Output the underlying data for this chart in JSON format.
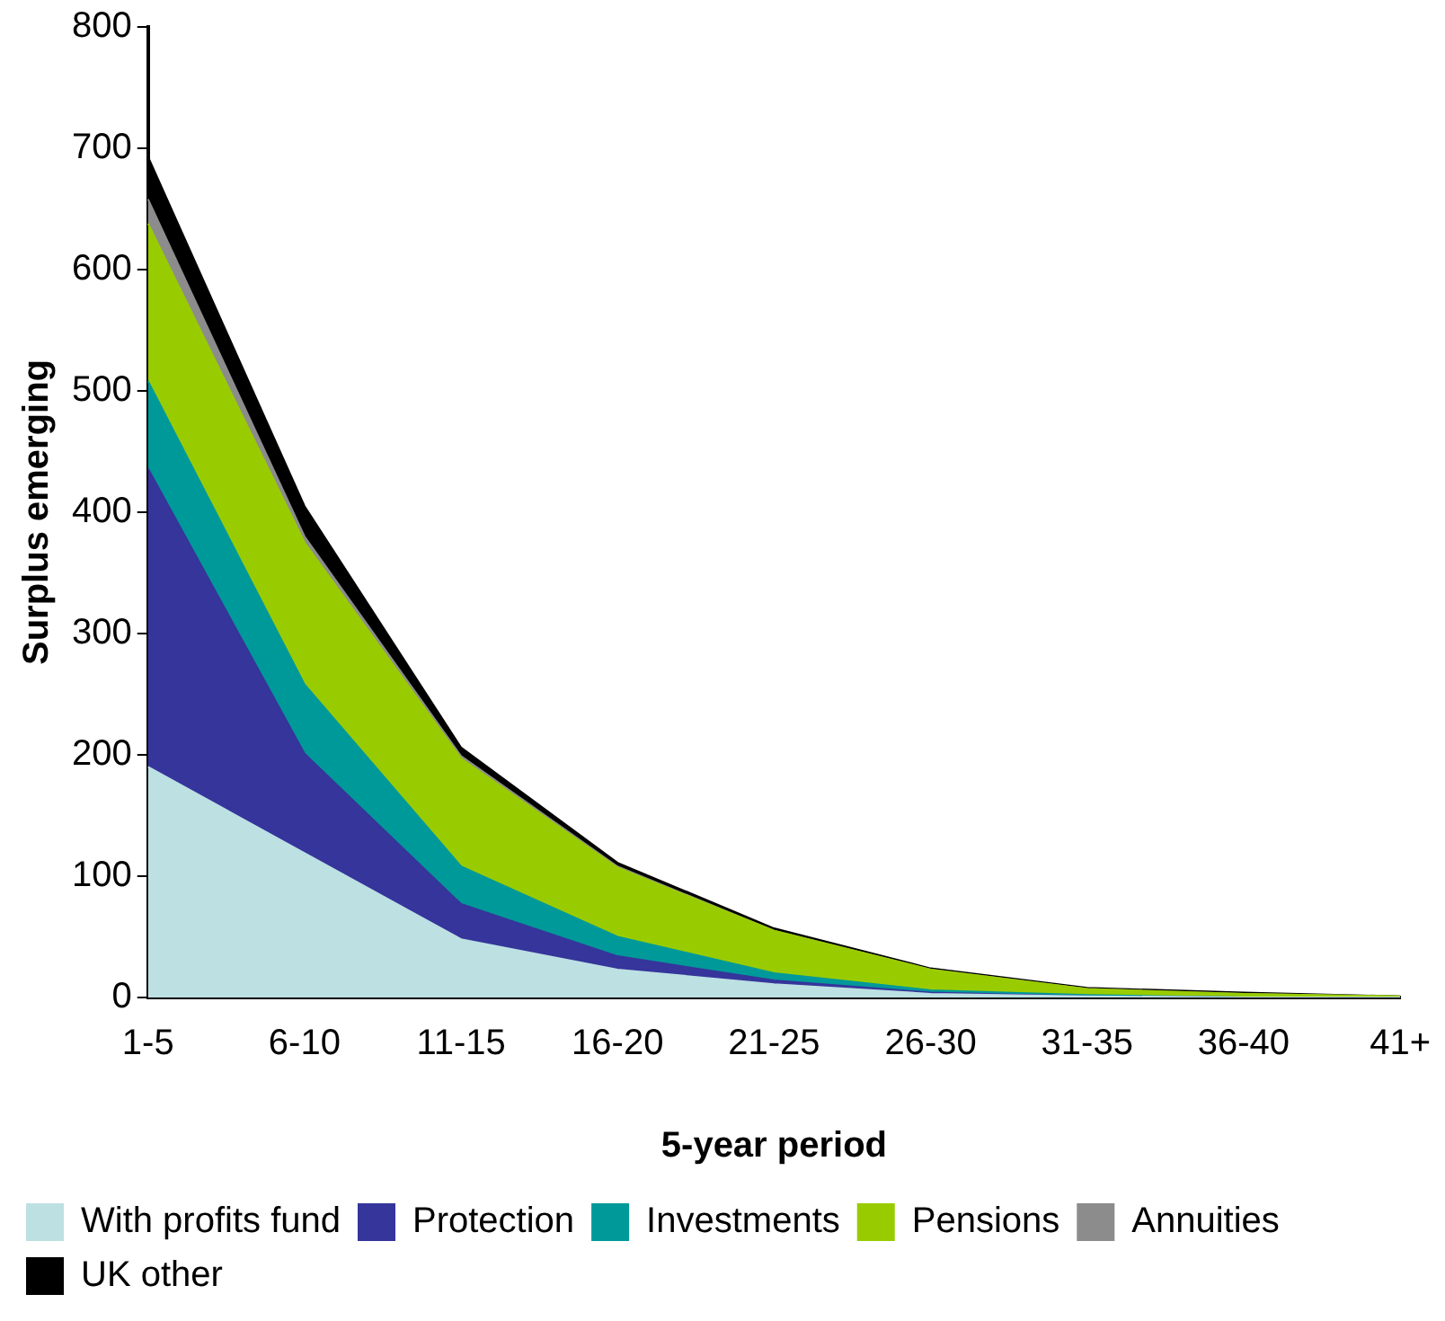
{
  "chart_data": {
    "type": "area",
    "stacked": true,
    "xlabel": "5-year period",
    "ylabel": "Surplus emerging",
    "categories": [
      "1-5",
      "6-10",
      "11-15",
      "16-20",
      "21-25",
      "26-30",
      "31-35",
      "36-40",
      "41+"
    ],
    "series": [
      {
        "name": "With profits fund",
        "color": "#bde0e3",
        "values": [
          190,
          119,
          48,
          23,
          11,
          3,
          1,
          0,
          0
        ]
      },
      {
        "name": "Protection",
        "color": "#35359b",
        "values": [
          246,
          82,
          29,
          11,
          3,
          1,
          0,
          0,
          0
        ]
      },
      {
        "name": "Investments",
        "color": "#009999",
        "values": [
          72,
          57,
          31,
          16,
          6,
          2,
          1,
          0,
          0
        ]
      },
      {
        "name": "Pensions",
        "color": "#99cc00",
        "values": [
          130,
          117,
          89,
          57,
          35,
          17,
          5,
          3,
          1
        ]
      },
      {
        "name": "Annuities",
        "color": "#8c8c8c",
        "values": [
          20,
          5,
          2,
          1,
          0,
          0,
          0,
          0,
          0
        ]
      },
      {
        "name": "UK other",
        "color": "#000000",
        "values": [
          35,
          25,
          7,
          3,
          2,
          1,
          1,
          1,
          0
        ]
      }
    ],
    "ylim": [
      0,
      800
    ],
    "yticks": [
      0,
      100,
      200,
      300,
      400,
      500,
      600,
      700,
      800
    ],
    "grid": false,
    "legend": "bottom"
  }
}
